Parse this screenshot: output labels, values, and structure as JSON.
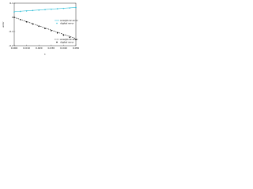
{
  "chart_data": {
    "type": "line",
    "x_label": "t",
    "y_label": "error",
    "x": [
      0,
      0.005,
      0.01,
      0.015,
      0.02,
      0.025,
      0.03,
      0.035,
      0.04,
      0.045,
      0.05
    ],
    "series": [
      {
        "name": "analytical error",
        "color": "#35c0d8",
        "style": "solid",
        "marker": false,
        "legend": 0,
        "values": [
          0.04,
          0.043,
          0.046,
          0.049,
          0.052,
          0.055,
          0.058,
          0.061,
          0.064,
          0.067,
          0.07
        ]
      },
      {
        "name": "digital error",
        "color": "#35c0d8",
        "style": "none",
        "marker": true,
        "legend": 0,
        "values": [
          0.038,
          0.042,
          0.045,
          0.048,
          0.051,
          0.054,
          0.057,
          0.06,
          0.063,
          0.066,
          0.069
        ]
      },
      {
        "name": "analytical error",
        "color": "#000000",
        "style": "dashed",
        "marker": false,
        "legend": 1,
        "values": [
          0,
          -0.015,
          -0.03,
          -0.045,
          -0.06,
          -0.075,
          -0.09,
          -0.105,
          -0.12,
          -0.135,
          -0.15
        ]
      },
      {
        "name": "digital error",
        "color": "#000000",
        "style": "none",
        "marker": true,
        "legend": 1,
        "values": [
          0,
          -0.016,
          -0.032,
          -0.047,
          -0.063,
          -0.079,
          -0.094,
          -0.11,
          -0.126,
          -0.141,
          -0.157
        ]
      }
    ],
    "xlim": [
      0,
      0.05
    ],
    "xticks": [
      {
        "value": 0,
        "label": "0.000"
      },
      {
        "value": 0.01,
        "label": "0.010"
      },
      {
        "value": 0.02,
        "label": "0.020"
      },
      {
        "value": 0.03,
        "label": "0.030"
      },
      {
        "value": 0.04,
        "label": "0.040"
      },
      {
        "value": 0.05,
        "label": "0.050"
      }
    ],
    "ylim": [
      -0.2,
      0.1
    ],
    "yticks": [
      -0.2,
      -0.1,
      0,
      0.1
    ],
    "grid": false
  }
}
